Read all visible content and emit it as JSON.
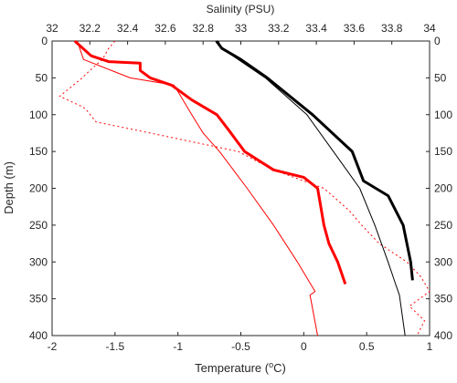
{
  "chart_data": {
    "type": "profile",
    "x2label": "Salinity (PSU)",
    "xlabel_parts": [
      "Temperature (",
      "o",
      "C)"
    ],
    "ylabel": "Depth (m)",
    "xlim": [
      -2,
      1
    ],
    "xticks": [
      -2,
      -1.5,
      -1,
      -0.5,
      0,
      0.5,
      1
    ],
    "x2lim": [
      32,
      34
    ],
    "x2ticks": [
      32,
      32.2,
      32.4,
      32.6,
      32.8,
      33,
      33.2,
      33.4,
      33.6,
      33.8,
      34
    ],
    "ylim": [
      0,
      400
    ],
    "yticks": [
      0,
      50,
      100,
      150,
      200,
      250,
      300,
      350,
      400
    ],
    "y_reversed": true,
    "series": [
      {
        "axis": "x",
        "color": "#ff0000",
        "width": 1,
        "dash": "2,3",
        "depth": [
          0,
          10,
          25,
          40,
          50,
          75,
          90,
          95,
          110,
          125,
          150,
          175,
          200,
          230,
          250,
          275,
          300,
          320,
          340,
          360,
          380,
          400
        ],
        "values": [
          -1.5,
          -1.55,
          -1.6,
          -1.7,
          -1.76,
          -1.94,
          -1.75,
          -1.72,
          -1.65,
          -1.22,
          -0.52,
          -0.24,
          0.16,
          0.36,
          0.46,
          0.6,
          0.82,
          0.93,
          1.0,
          0.84,
          0.96,
          0.9
        ]
      },
      {
        "axis": "x",
        "color": "#ff0000",
        "width": 1,
        "dash": "none",
        "depth": [
          0,
          25,
          50,
          60,
          100,
          125,
          150,
          200,
          250,
          300,
          340,
          345,
          400
        ],
        "values": [
          -1.8,
          -1.75,
          -1.38,
          -1.03,
          -0.89,
          -0.8,
          -0.67,
          -0.45,
          -0.24,
          -0.05,
          0.09,
          0.05,
          0.11
        ]
      },
      {
        "axis": "x",
        "color": "#ff0000",
        "width": 3,
        "dash": "none",
        "depth": [
          0,
          20,
          28,
          30,
          40,
          50,
          60,
          80,
          100,
          120,
          150,
          175,
          185,
          200,
          250,
          275,
          300,
          330
        ],
        "values": [
          -1.82,
          -1.69,
          -1.55,
          -1.3,
          -1.3,
          -1.22,
          -1.05,
          -0.89,
          -0.69,
          -0.6,
          -0.47,
          -0.24,
          0.0,
          0.11,
          0.16,
          0.2,
          0.27,
          0.33
        ]
      },
      {
        "axis": "x2",
        "color": "#000000",
        "width": 1,
        "dash": "none",
        "depth": [
          0,
          10,
          50,
          100,
          150,
          200,
          250,
          300,
          330,
          345,
          400
        ],
        "values": [
          32.88,
          32.9,
          33.13,
          33.35,
          33.49,
          33.63,
          33.71,
          33.78,
          33.82,
          33.84,
          33.87
        ]
      },
      {
        "axis": "x2",
        "color": "#000000",
        "width": 3,
        "dash": "none",
        "depth": [
          0,
          10,
          25,
          50,
          100,
          150,
          190,
          210,
          250,
          300,
          325
        ],
        "values": [
          32.87,
          32.9,
          33.0,
          33.14,
          33.38,
          33.59,
          33.65,
          33.78,
          33.86,
          33.9,
          33.91
        ]
      }
    ]
  }
}
